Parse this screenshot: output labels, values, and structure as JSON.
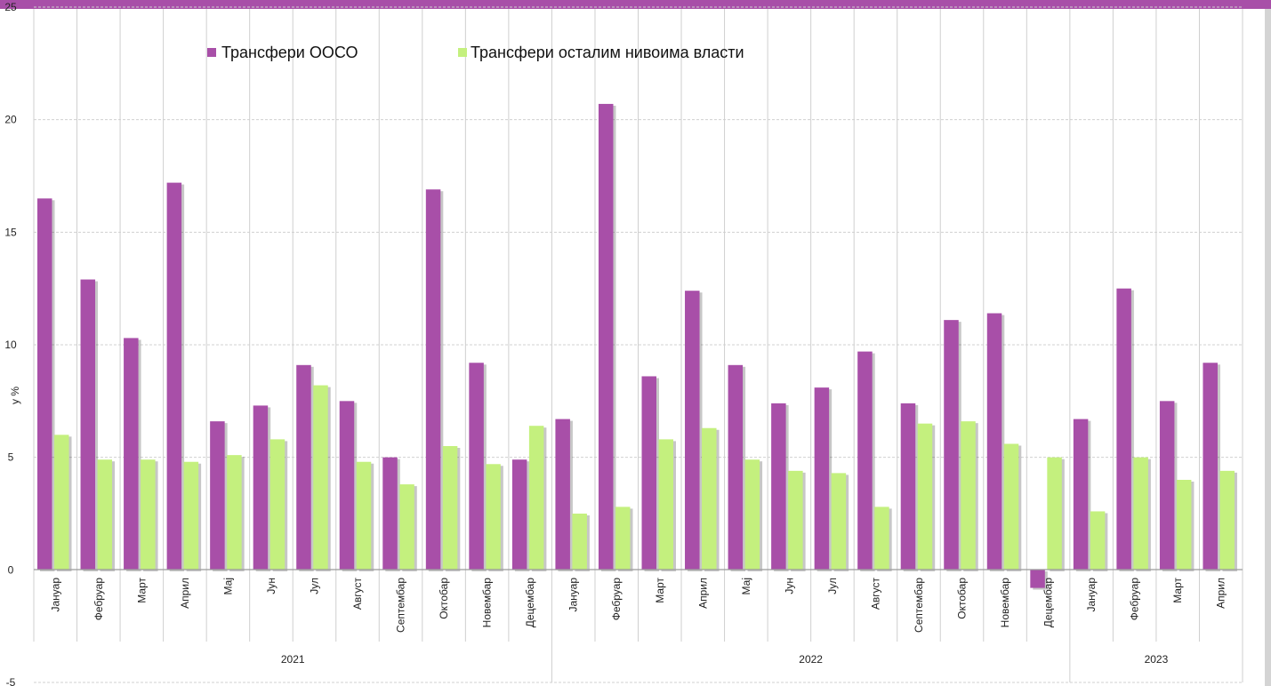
{
  "chart_data": {
    "type": "bar",
    "ylabel": "у %",
    "ylim": [
      -5,
      25
    ],
    "yticks": [
      -5,
      0,
      5,
      10,
      15,
      20,
      25
    ],
    "ytick_labels": [
      "-5",
      "0",
      "5",
      "10",
      "15",
      "20",
      "25"
    ],
    "grid": true,
    "legend_position": "top",
    "categories": [
      "Јануар",
      "Фебруар",
      "Март",
      "Април",
      "Мај",
      "Јун",
      "Јул",
      "Август",
      "Септембар",
      "Октобар",
      "Новембар",
      "Децембар",
      "Јануар",
      "Фебруар",
      "Март",
      "Април",
      "Мај",
      "Јун",
      "Јул",
      "Август",
      "Септембар",
      "Октобар",
      "Новембар",
      "Децембар",
      "Јануар",
      "Фебруар",
      "Март",
      "Април"
    ],
    "groups": [
      {
        "label": "2021",
        "count": 12
      },
      {
        "label": "2022",
        "count": 12
      },
      {
        "label": "2023",
        "count": 4
      }
    ],
    "series": [
      {
        "name": "Трансфери ООСО",
        "color": "#a84fa8",
        "values": [
          16.5,
          12.9,
          10.3,
          17.2,
          6.6,
          7.3,
          9.1,
          7.5,
          5.0,
          16.9,
          9.2,
          4.9,
          6.7,
          20.7,
          8.6,
          12.4,
          9.1,
          7.4,
          8.1,
          9.7,
          7.4,
          11.1,
          11.4,
          -0.8,
          6.7,
          12.5,
          7.5,
          9.2
        ]
      },
      {
        "name": "Трансфери осталим нивоима власти",
        "color": "#c4f07e",
        "values": [
          6.0,
          4.9,
          4.9,
          4.8,
          5.1,
          5.8,
          8.2,
          4.8,
          3.8,
          5.5,
          4.7,
          6.4,
          2.5,
          2.8,
          5.8,
          6.3,
          4.9,
          4.4,
          4.3,
          2.8,
          6.5,
          6.6,
          5.6,
          5.0,
          2.6,
          5.0,
          4.0,
          4.4
        ]
      }
    ]
  }
}
